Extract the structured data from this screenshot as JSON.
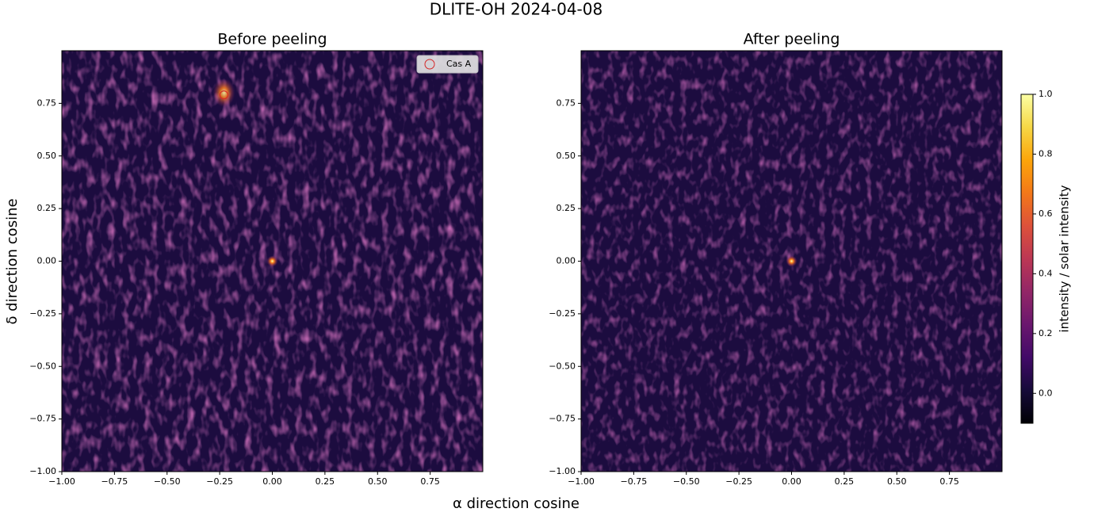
{
  "title": "DLITE-OH 2024-04-08",
  "xlabel": "α direction cosine",
  "ylabel": "δ direction cosine",
  "chart_data": [
    {
      "type": "heatmap",
      "title": "Before peeling",
      "colormap": "inferno",
      "xlim": [
        -1,
        1
      ],
      "ylim": [
        -1,
        1
      ],
      "xticks": [
        {
          "value": -1,
          "label": "−1.00"
        },
        {
          "value": -0.75,
          "label": "−0.75"
        },
        {
          "value": -0.5,
          "label": "−0.50"
        },
        {
          "value": -0.25,
          "label": "−0.25"
        },
        {
          "value": 0,
          "label": "0.00"
        },
        {
          "value": 0.25,
          "label": "0.25"
        },
        {
          "value": 0.5,
          "label": "0.50"
        },
        {
          "value": 0.75,
          "label": "0.75"
        }
      ],
      "yticks": [
        {
          "value": -1,
          "label": "−1.00"
        },
        {
          "value": -0.75,
          "label": "−0.75"
        },
        {
          "value": -0.5,
          "label": "−0.50"
        },
        {
          "value": -0.25,
          "label": "−0.25"
        },
        {
          "value": 0,
          "label": "0.00"
        },
        {
          "value": 0.25,
          "label": "0.25"
        },
        {
          "value": 0.5,
          "label": "0.50"
        },
        {
          "value": 0.75,
          "label": "0.75"
        }
      ],
      "legend": "upper right",
      "series": [
        {
          "name": "Cas A",
          "color": "#d62728",
          "x": [
            -0.23
          ],
          "y": [
            0.79
          ]
        }
      ]
    },
    {
      "type": "heatmap",
      "title": "After peeling",
      "colormap": "inferno",
      "xlim": [
        -1,
        1
      ],
      "ylim": [
        -1,
        1
      ],
      "xticks": [
        {
          "value": -1,
          "label": "−1.00"
        },
        {
          "value": -0.75,
          "label": "−0.75"
        },
        {
          "value": -0.5,
          "label": "−0.50"
        },
        {
          "value": -0.25,
          "label": "−0.25"
        },
        {
          "value": 0,
          "label": "0.00"
        },
        {
          "value": 0.25,
          "label": "0.25"
        },
        {
          "value": 0.5,
          "label": "0.50"
        },
        {
          "value": 0.75,
          "label": "0.75"
        }
      ],
      "yticks": [
        {
          "value": -1,
          "label": "−1.00"
        },
        {
          "value": -0.75,
          "label": "−0.75"
        },
        {
          "value": -0.5,
          "label": "−0.50"
        },
        {
          "value": -0.25,
          "label": "−0.25"
        },
        {
          "value": 0,
          "label": "0.00"
        },
        {
          "value": 0.25,
          "label": "0.25"
        },
        {
          "value": 0.5,
          "label": "0.50"
        },
        {
          "value": 0.75,
          "label": "0.75"
        }
      ]
    },
    {
      "type": "colorbar",
      "label": "intensity / solar intensity",
      "colormap": "inferno",
      "ylim": [
        -0.1,
        1.0
      ],
      "yticks": [
        {
          "value": 0,
          "label": "0.0"
        },
        0.2,
        0.4,
        0.6,
        0.8,
        {
          "value": 1,
          "label": "1.0"
        }
      ]
    }
  ]
}
